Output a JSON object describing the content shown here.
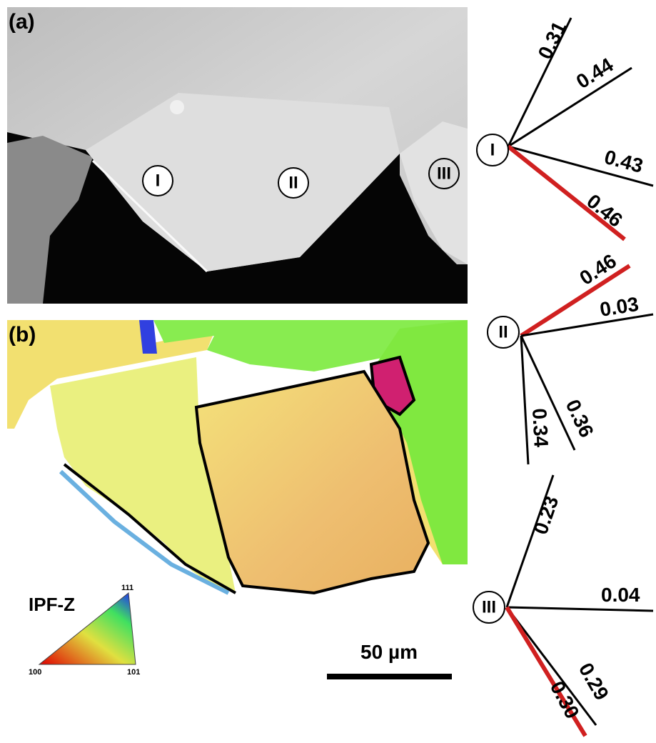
{
  "panels": {
    "a": {
      "label": "(a)",
      "grains": [
        "I",
        "II",
        "III"
      ]
    },
    "b": {
      "label": "(b)",
      "legend": {
        "title": "IPF-Z",
        "corners": [
          "111",
          "100",
          "101"
        ]
      },
      "scale_bar": "50 µm"
    }
  },
  "diagrams": [
    {
      "grain": "I",
      "factors": [
        "0.31",
        "0.44",
        "0.43",
        "0.46"
      ]
    },
    {
      "grain": "II",
      "factors": [
        "0.46",
        "0.03",
        "0.34",
        "0.36"
      ]
    },
    {
      "grain": "III",
      "factors": [
        "0.23",
        "0.04",
        "0.29",
        "0.30"
      ]
    }
  ]
}
